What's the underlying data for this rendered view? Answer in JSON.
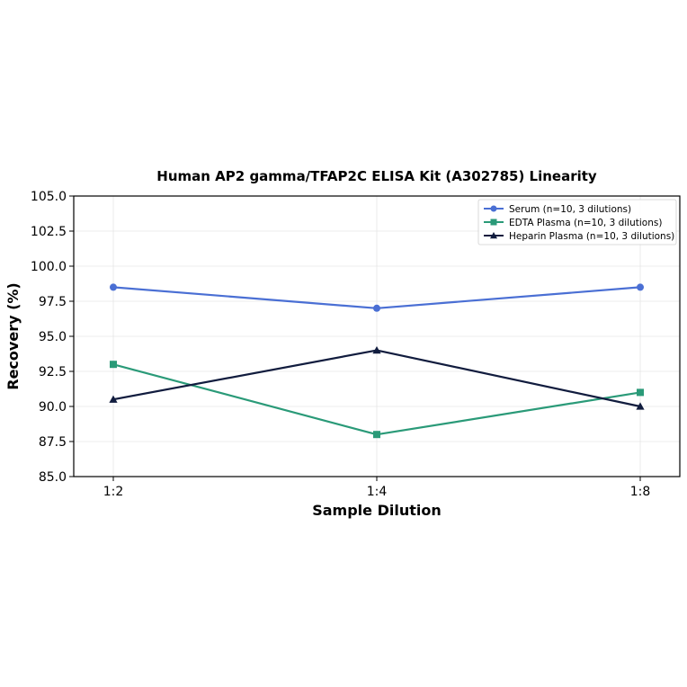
{
  "chart_data": {
    "type": "line",
    "title": "Human AP2 gamma/TFAP2C ELISA Kit (A302785) Linearity",
    "xlabel": "Sample Dilution",
    "ylabel": "Recovery (%)",
    "categories": [
      "1:2",
      "1:4",
      "1:8"
    ],
    "ylim": [
      85.0,
      105.0
    ],
    "yticks": [
      "85.0",
      "87.5",
      "90.0",
      "92.5",
      "95.0",
      "97.5",
      "100.0",
      "102.5",
      "105.0"
    ],
    "grid": true,
    "legend_position": "top-right",
    "series": [
      {
        "name": "Serum (n=10, 3 dilutions)",
        "values": [
          98.5,
          97.0,
          98.5
        ],
        "color": "#4a6fd4",
        "marker": "circle"
      },
      {
        "name": "EDTA Plasma (n=10, 3 dilutions)",
        "values": [
          93.0,
          88.0,
          91.0
        ],
        "color": "#2a9a78",
        "marker": "square"
      },
      {
        "name": "Heparin Plasma (n=10, 3 dilutions)",
        "values": [
          90.5,
          94.0,
          90.0
        ],
        "color": "#111c3e",
        "marker": "triangle"
      }
    ]
  }
}
